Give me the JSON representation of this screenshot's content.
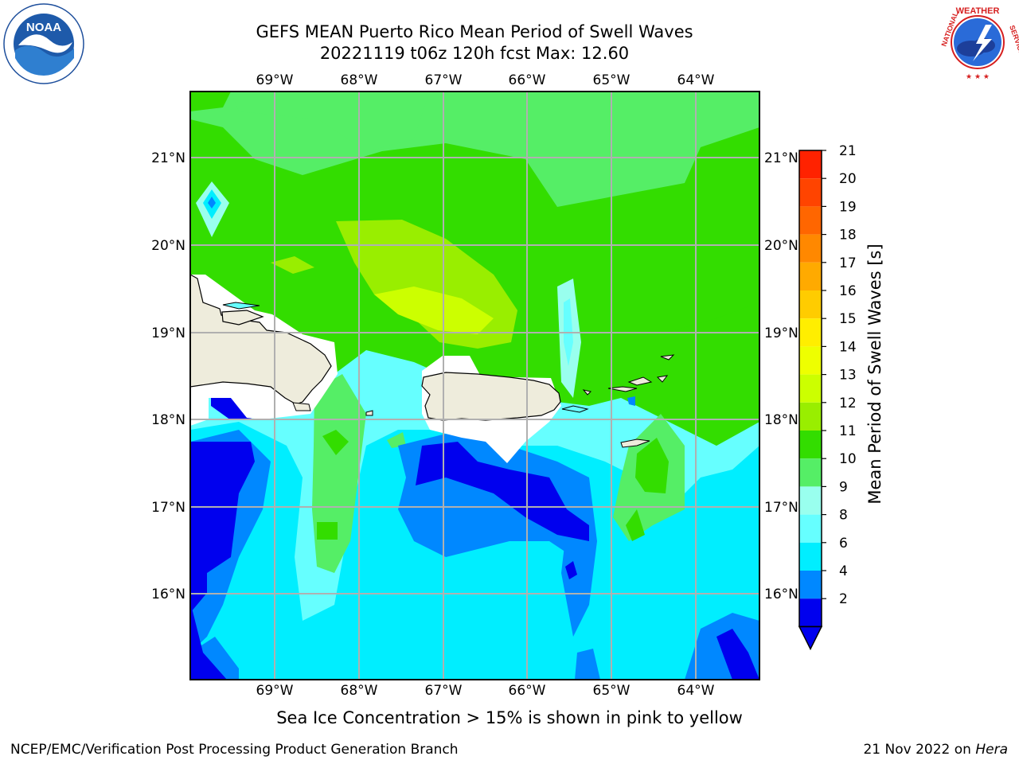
{
  "title_line1": "GEFS MEAN Puerto Rico Mean Period of Swell Waves",
  "title_line2": "20221119 t06z 120h fcst   Max: 12.60",
  "logos": {
    "left": "NOAA",
    "right_icon": "national-weather-service-logo",
    "right_text": "NATIONAL WEATHER SERVICE"
  },
  "map": {
    "lon_labels": [
      "69°W",
      "68°W",
      "67°W",
      "66°W",
      "65°W",
      "64°W"
    ],
    "lat_labels": [
      "21°N",
      "20°N",
      "19°N",
      "18°N",
      "17°N",
      "16°N"
    ],
    "land_color": "#eeecdc",
    "grid_color": "#b0b0b0"
  },
  "colorbar": {
    "label": "Mean Period of Swell Waves [s]",
    "ticks": [
      "21",
      "20",
      "19",
      "18",
      "17",
      "16",
      "15",
      "14",
      "13",
      "12",
      "11",
      "10",
      "9",
      "8",
      "6",
      "4",
      "2"
    ],
    "colors": [
      "#ff2200",
      "#ff4400",
      "#ff6600",
      "#ff8800",
      "#ffaa00",
      "#ffcc00",
      "#ffee00",
      "#eeff00",
      "#ccff00",
      "#99ee00",
      "#33dd00",
      "#55ee66",
      "#99ffee",
      "#66ffff",
      "#00eeff",
      "#0088ff",
      "#0000ee"
    ]
  },
  "bottom_note": "Sea Ice Concentration > 15% is shown in pink to yellow",
  "footer": {
    "left": "NCEP/EMC/Verification Post Processing Product Generation Branch",
    "right_date": "21 Nov 2022 on",
    "right_host": "Hera"
  }
}
